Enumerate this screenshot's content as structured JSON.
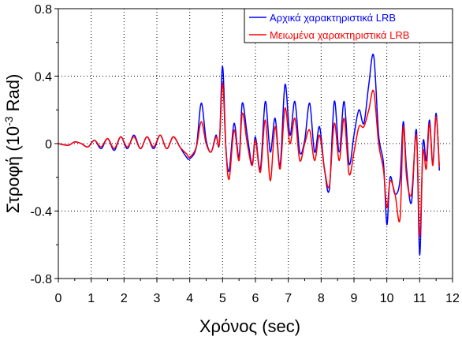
{
  "chart_data": {
    "type": "line",
    "title": "",
    "xlabel": "Χρόνος (sec)",
    "ylabel": {
      "prefix": "Στροφή (10",
      "superscript": "-3",
      "suffix": " Rad)"
    },
    "xlim": [
      0,
      12
    ],
    "ylim": [
      -0.8,
      0.8
    ],
    "xticks": [
      "0",
      "1",
      "2",
      "3",
      "4",
      "5",
      "6",
      "7",
      "8",
      "9",
      "10",
      "11",
      "12"
    ],
    "yticks": [
      "0.8",
      "0.4",
      "0",
      "-0.4",
      "-0.8"
    ],
    "grid": true,
    "legend_position": "top-right",
    "series": [
      {
        "name": "Αρχικά χαρακτηριστικά LRB",
        "color": "#0000ff",
        "x": [
          0,
          0.3,
          0.5,
          0.7,
          0.9,
          1.1,
          1.3,
          1.5,
          1.7,
          1.9,
          2.1,
          2.3,
          2.5,
          2.7,
          2.9,
          3.1,
          3.3,
          3.5,
          3.7,
          3.9,
          4.0,
          4.2,
          4.35,
          4.5,
          4.65,
          4.8,
          4.9,
          5.0,
          5.1,
          5.2,
          5.35,
          5.5,
          5.6,
          5.75,
          5.9,
          6.0,
          6.15,
          6.3,
          6.45,
          6.6,
          6.75,
          6.9,
          7.05,
          7.2,
          7.35,
          7.5,
          7.65,
          7.8,
          7.95,
          8.1,
          8.25,
          8.4,
          8.55,
          8.7,
          8.85,
          9.0,
          9.15,
          9.3,
          9.45,
          9.6,
          9.75,
          9.9,
          10.0,
          10.1,
          10.25,
          10.4,
          10.5,
          10.6,
          10.75,
          10.9,
          11.0,
          11.1,
          11.2,
          11.3,
          11.4,
          11.5,
          11.6
        ],
        "y": [
          0,
          -0.01,
          0.01,
          0.0,
          -0.02,
          0.02,
          -0.03,
          0.03,
          -0.04,
          0.04,
          -0.03,
          0.05,
          -0.03,
          0.04,
          -0.03,
          0.05,
          -0.03,
          0.04,
          -0.02,
          -0.08,
          -0.09,
          -0.02,
          0.24,
          0.02,
          -0.05,
          0.05,
          0.0,
          0.46,
          -0.02,
          -0.16,
          0.12,
          -0.08,
          0.24,
          0.05,
          -0.12,
          0.04,
          -0.15,
          0.25,
          -0.05,
          0.15,
          -0.13,
          0.35,
          0.05,
          0.25,
          -0.05,
          0.02,
          0.24,
          -0.05,
          0.1,
          -0.15,
          -0.27,
          0.25,
          -0.05,
          0.25,
          -0.12,
          0.05,
          0.2,
          0.12,
          0.35,
          0.52,
          0.05,
          -0.12,
          -0.48,
          -0.2,
          -0.3,
          -0.22,
          0.13,
          -0.15,
          -0.35,
          0.08,
          -0.66,
          0.0,
          -0.1,
          0.14,
          -0.12,
          0.18,
          -0.16
        ]
      },
      {
        "name": "Μειωμένα χαρακτηριστικά LRB",
        "color": "#ff0000",
        "x": [
          0,
          0.3,
          0.5,
          0.7,
          0.9,
          1.1,
          1.3,
          1.5,
          1.7,
          1.9,
          2.1,
          2.3,
          2.5,
          2.7,
          2.9,
          3.1,
          3.3,
          3.5,
          3.7,
          3.9,
          4.0,
          4.2,
          4.35,
          4.5,
          4.65,
          4.8,
          4.9,
          5.0,
          5.1,
          5.2,
          5.35,
          5.5,
          5.6,
          5.75,
          5.9,
          6.0,
          6.15,
          6.3,
          6.45,
          6.6,
          6.75,
          6.9,
          7.05,
          7.2,
          7.35,
          7.5,
          7.65,
          7.8,
          7.95,
          8.1,
          8.25,
          8.4,
          8.55,
          8.7,
          8.85,
          9.0,
          9.15,
          9.3,
          9.45,
          9.6,
          9.75,
          9.9,
          10.0,
          10.1,
          10.25,
          10.4,
          10.5,
          10.6,
          10.75,
          10.9,
          11.0,
          11.1,
          11.2,
          11.3,
          11.4,
          11.5,
          11.6
        ],
        "y": [
          0,
          -0.01,
          0.01,
          0.0,
          -0.02,
          0.02,
          -0.02,
          0.03,
          -0.03,
          0.04,
          -0.02,
          0.04,
          -0.03,
          0.04,
          -0.02,
          0.05,
          -0.03,
          0.04,
          -0.02,
          -0.06,
          -0.08,
          -0.02,
          0.13,
          0.0,
          -0.05,
          0.04,
          0.0,
          0.36,
          -0.03,
          -0.21,
          0.08,
          -0.1,
          0.18,
          0.0,
          -0.13,
          0.02,
          -0.17,
          0.14,
          -0.22,
          0.1,
          -0.15,
          0.21,
          0.0,
          0.15,
          -0.1,
          0.0,
          0.08,
          -0.1,
          0.05,
          -0.15,
          -0.25,
          0.12,
          -0.1,
          0.15,
          -0.18,
          -0.05,
          0.1,
          0.1,
          0.2,
          0.31,
          0.0,
          -0.16,
          -0.38,
          -0.22,
          -0.3,
          -0.45,
          0.1,
          -0.2,
          -0.3,
          0.05,
          -0.55,
          -0.05,
          -0.15,
          0.12,
          -0.13,
          0.16,
          -0.14
        ]
      }
    ]
  }
}
